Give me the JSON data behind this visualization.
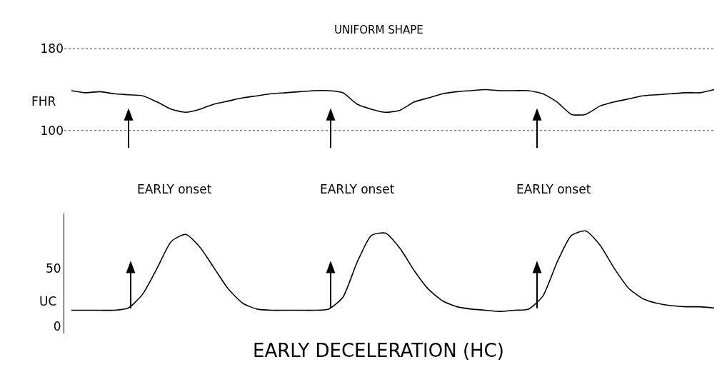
{
  "chart_data": [
    {
      "type": "line",
      "title": "UNIFORM SHAPE",
      "ylabel": "FHR",
      "categories": [
        null,
        null,
        null,
        null,
        null,
        null,
        null,
        null,
        null,
        null,
        null,
        null,
        null,
        null,
        null,
        null,
        null,
        null,
        null,
        null,
        null,
        null,
        null,
        null,
        null,
        null,
        null,
        null,
        null,
        null,
        null,
        null,
        null,
        null,
        null,
        null,
        null,
        null,
        null,
        null,
        null,
        null,
        null,
        null,
        null,
        null
      ],
      "series": [
        {
          "color": "#000000",
          "values": [
            139,
            137,
            138,
            136,
            135,
            134,
            128,
            121,
            118,
            121,
            126,
            129,
            132,
            134,
            136,
            137,
            138,
            139,
            139,
            137,
            126,
            121,
            118,
            120,
            128,
            132,
            136,
            138,
            139,
            140,
            139,
            139,
            139,
            136,
            128,
            116,
            116,
            124,
            128,
            131,
            134,
            135,
            136,
            137,
            137,
            140
          ]
        }
      ],
      "ylim": [
        100,
        180
      ],
      "yticks": [
        100,
        180
      ],
      "grid": "y",
      "tick_labels": "y",
      "annotations": [
        "EARLY onset",
        "EARLY onset",
        "EARLY onset"
      ]
    },
    {
      "type": "line",
      "ylabel": "UC",
      "categories": [
        null,
        null,
        null,
        null,
        null,
        null,
        null,
        null,
        null,
        null,
        null,
        null,
        null,
        null,
        null,
        null,
        null,
        null,
        null,
        null,
        null,
        null,
        null,
        null,
        null,
        null,
        null,
        null,
        null,
        null,
        null,
        null,
        null,
        null,
        null,
        null,
        null,
        null,
        null,
        null,
        null,
        null,
        null,
        null,
        null,
        null
      ],
      "series": [
        {
          "color": "#000000",
          "values": [
            14,
            14,
            14,
            14,
            16,
            28,
            50,
            73,
            79,
            68,
            50,
            32,
            20,
            15,
            14,
            14,
            14,
            14,
            15,
            25,
            55,
            78,
            80,
            67,
            48,
            32,
            22,
            17,
            15,
            14,
            13,
            14,
            15,
            26,
            55,
            78,
            82,
            70,
            50,
            33,
            24,
            20,
            18,
            17,
            17,
            16
          ]
        }
      ],
      "ylim": [
        -6,
        97
      ],
      "yticks": [
        0,
        50
      ],
      "tick_labels": "y",
      "annotations": [
        "EARLY DECELERATION (HC)"
      ]
    }
  ]
}
